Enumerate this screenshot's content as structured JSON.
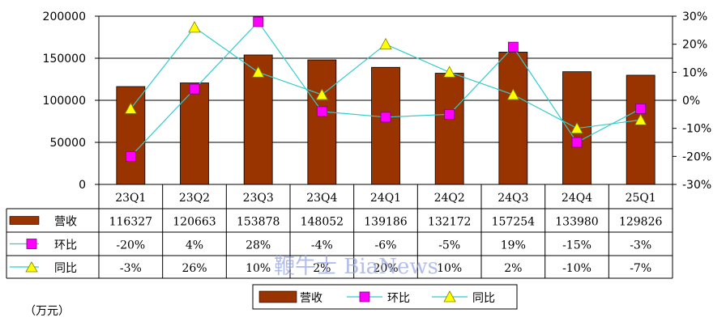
{
  "chart_data": {
    "type": "bar",
    "categories": [
      "23Q1",
      "23Q2",
      "23Q3",
      "23Q4",
      "24Q1",
      "24Q2",
      "24Q3",
      "24Q4",
      "25Q1"
    ],
    "series": [
      {
        "name": "营收",
        "kind": "bar",
        "axis": "left",
        "color": "#993300",
        "values": [
          116327,
          120663,
          153878,
          148052,
          139186,
          132172,
          157254,
          133980,
          129826
        ],
        "labels": [
          "116327",
          "120663",
          "153878",
          "148052",
          "139186",
          "132172",
          "157254",
          "133980",
          "129826"
        ]
      },
      {
        "name": "环比",
        "kind": "line",
        "marker": "square",
        "axis": "right",
        "color": "#ff00ff",
        "line_color": "#33cccc",
        "values": [
          -20,
          4,
          28,
          -4,
          -6,
          -5,
          19,
          -15,
          -3
        ],
        "labels": [
          "-20%",
          "4%",
          "28%",
          "-4%",
          "-6%",
          "-5%",
          "19%",
          "-15%",
          "-3%"
        ]
      },
      {
        "name": "同比",
        "kind": "line",
        "marker": "triangle",
        "axis": "right",
        "color": "#ffff00",
        "line_color": "#33cccc",
        "values": [
          -3,
          26,
          10,
          2,
          20,
          10,
          2,
          -10,
          -7
        ],
        "labels": [
          "-3%",
          "26%",
          "10%",
          "2%",
          "20%",
          "10%",
          "2%",
          "-10%",
          "-7%"
        ]
      }
    ],
    "left_axis": {
      "min": 0,
      "max": 200000,
      "ticks": [
        "0",
        "50000",
        "100000",
        "150000",
        "200000"
      ]
    },
    "right_axis": {
      "min": -30,
      "max": 30,
      "ticks": [
        "-30%",
        "-20%",
        "-10%",
        "0%",
        "10%",
        "20%",
        "30%"
      ]
    },
    "grid": true,
    "legend": {
      "position": "bottom",
      "items": [
        "营收",
        "环比",
        "同比"
      ]
    },
    "unit_label": "（万元）",
    "watermark": "鞭牛士 BiaNews"
  }
}
